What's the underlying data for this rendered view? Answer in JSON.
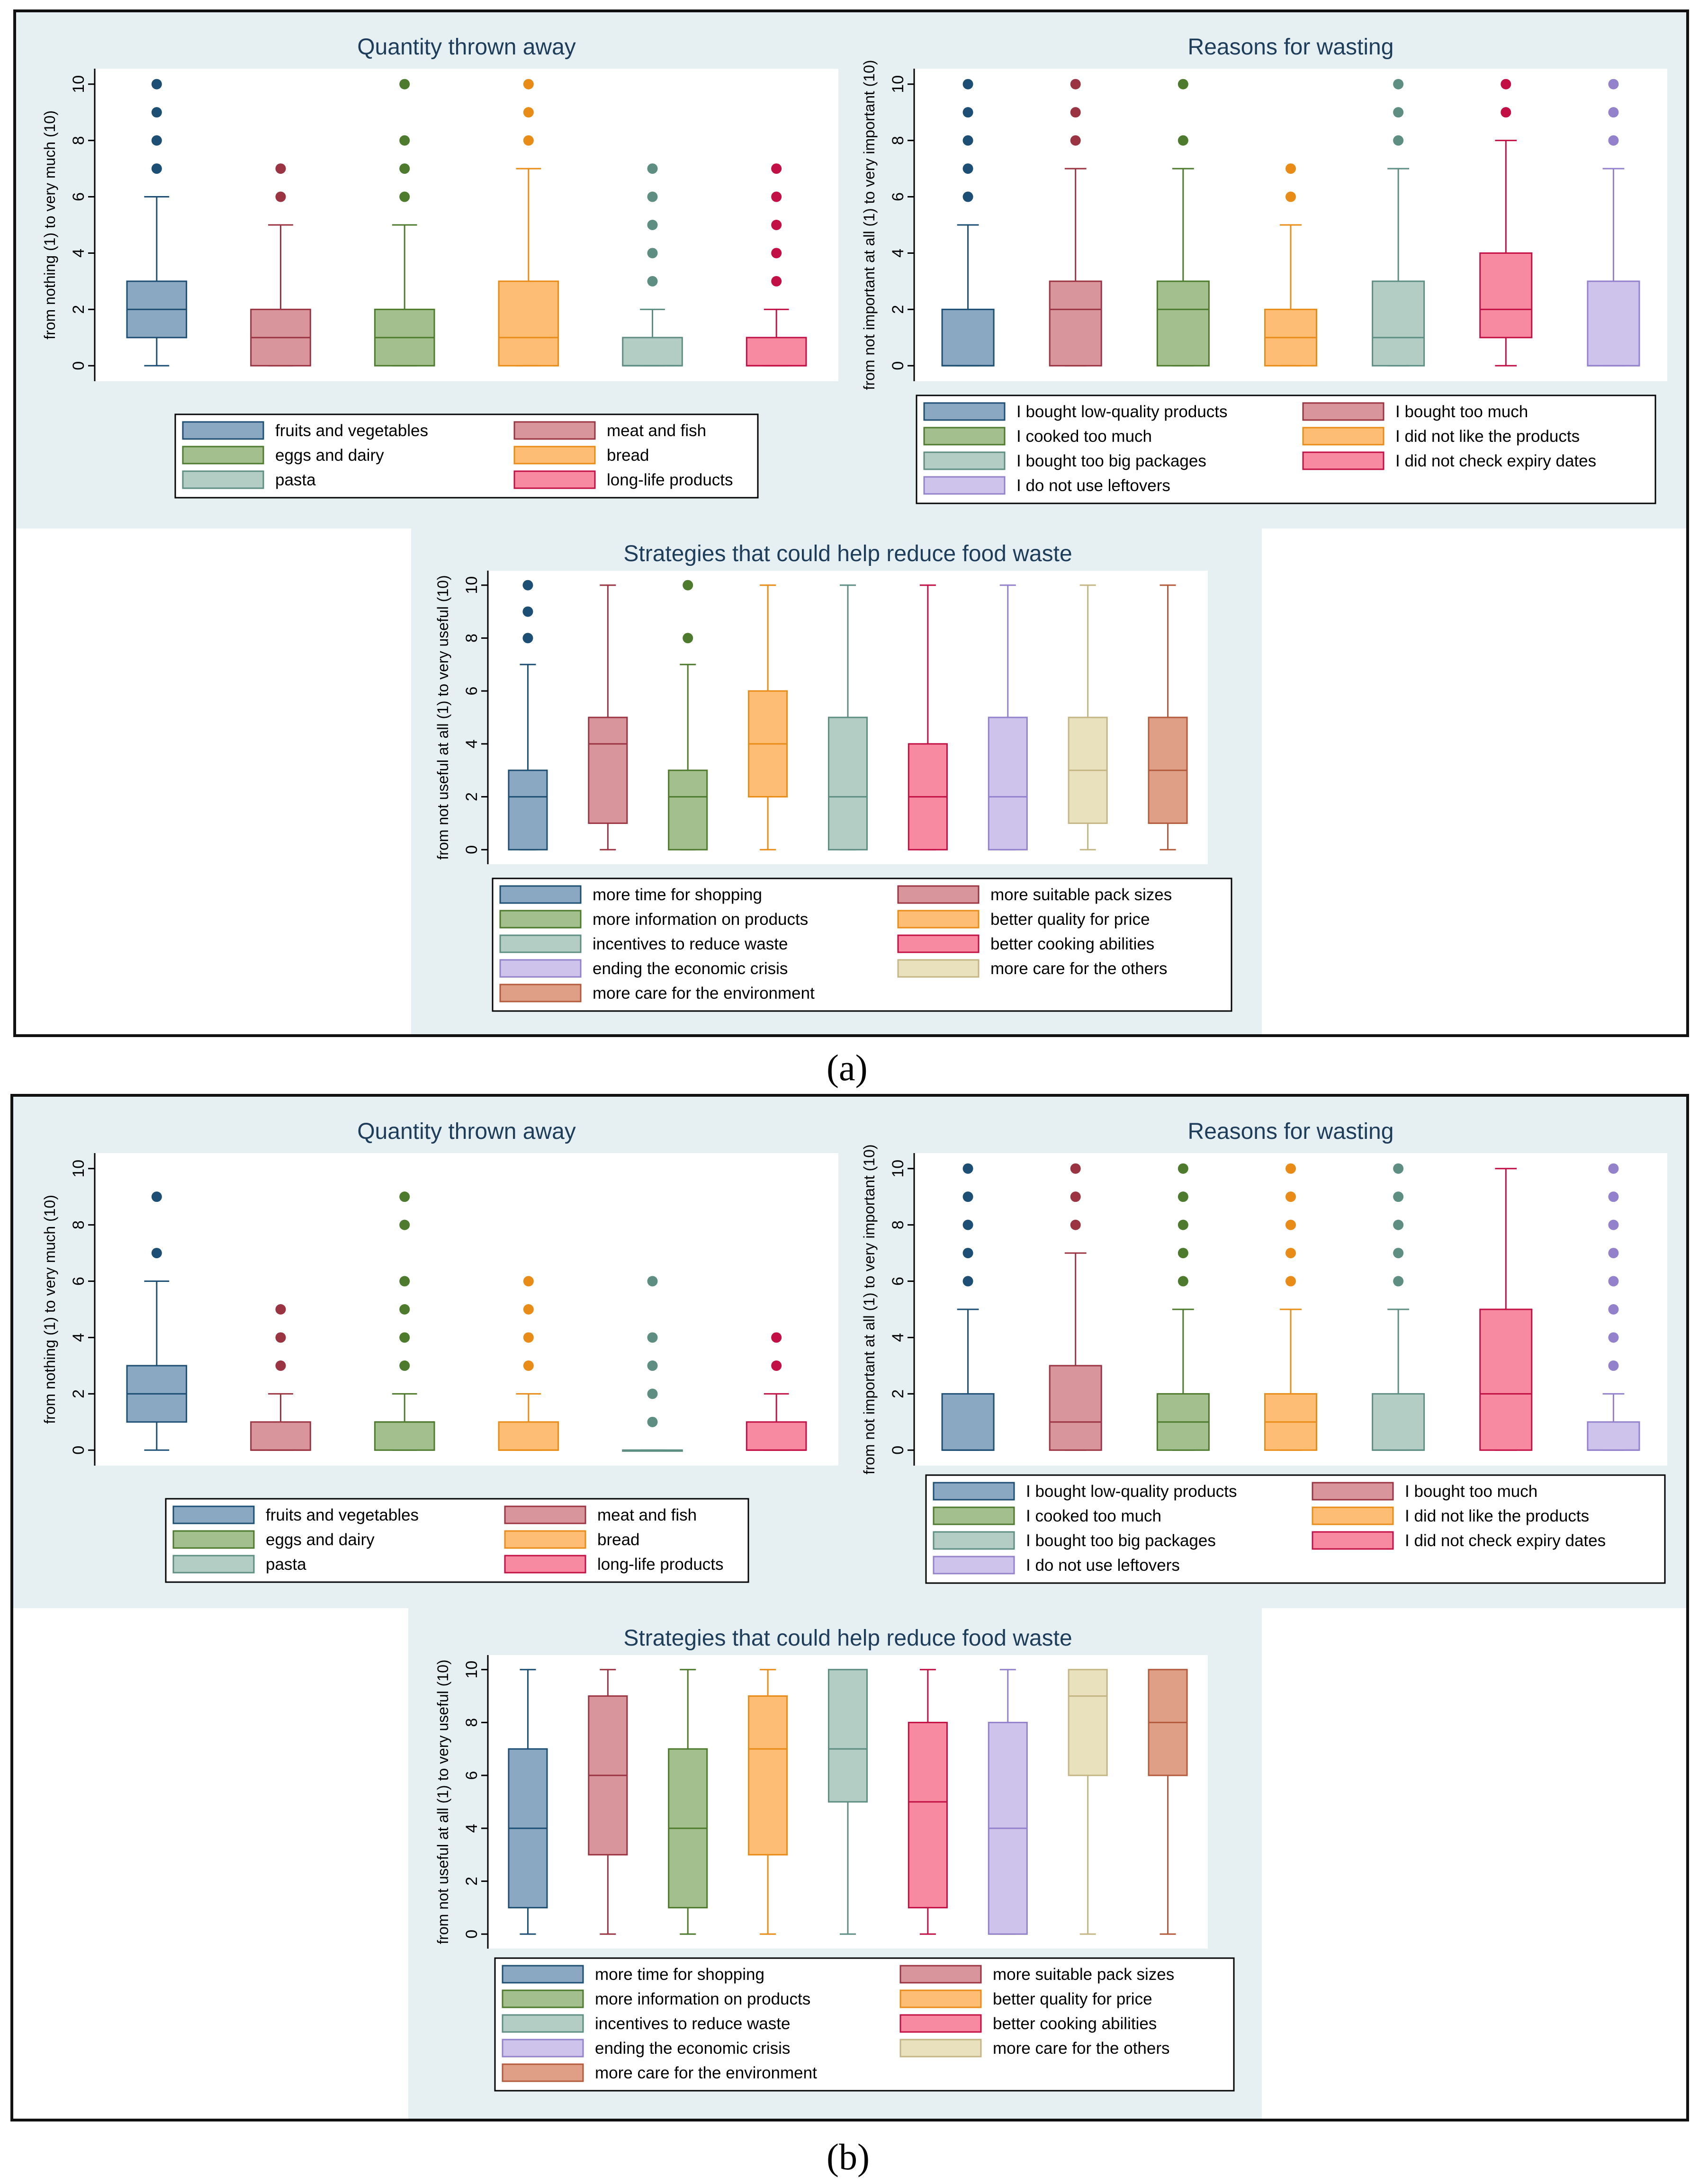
{
  "panel_labels": {
    "a": "(a)",
    "b": "(b)"
  },
  "legends": {
    "quantity": [
      "fruits and vegetables",
      "meat and fish",
      "eggs and dairy",
      "bread",
      "pasta",
      "long-life products"
    ],
    "reasons": [
      "I bought low-quality products",
      "I bought too much",
      "I cooked too much",
      "I did not like the products",
      "I bought too big packages",
      "I did not check expiry dates",
      "I do not use leftovers"
    ],
    "strategies": [
      "more time for shopping",
      "more suitable pack sizes",
      "more information on products",
      "better quality for price",
      "incentives to reduce waste",
      "better cooking abilities",
      "ending the economic crisis",
      "more care for the others",
      "more care for the environment"
    ]
  },
  "palette": [
    {
      "fill": "#8aa8c2",
      "stroke": "#1d4e74"
    },
    {
      "fill": "#d9959c",
      "stroke": "#9a3442"
    },
    {
      "fill": "#a3bf8e",
      "stroke": "#4d7a2d"
    },
    {
      "fill": "#fdbd75",
      "stroke": "#e88c17"
    },
    {
      "fill": "#b3cdc5",
      "stroke": "#5d8e81"
    },
    {
      "fill": "#f78aa1",
      "stroke": "#c21045"
    },
    {
      "fill": "#cec3ea",
      "stroke": "#9381cc"
    },
    {
      "fill": "#e9e1bd",
      "stroke": "#c4b584"
    },
    {
      "fill": "#de9f86",
      "stroke": "#b35a3c"
    }
  ],
  "chart_data": [
    {
      "type": "box",
      "panel": "a",
      "key": "a-quantity",
      "title": "Quantity thrown away",
      "ylabel": "from nothing (1) to very much (10)",
      "ylim": [
        0,
        10
      ],
      "yticks": [
        0,
        2,
        4,
        6,
        8,
        10
      ],
      "legend": "quantity",
      "boxes": [
        {
          "q1": 1,
          "med": 2,
          "q3": 3,
          "lo": 0,
          "hi": 6,
          "out": [
            7,
            8,
            9,
            10
          ]
        },
        {
          "q1": 0,
          "med": 1,
          "q3": 2,
          "lo": 0,
          "hi": 5,
          "out": [
            6,
            7
          ]
        },
        {
          "q1": 0,
          "med": 1,
          "q3": 2,
          "lo": 0,
          "hi": 5,
          "out": [
            6,
            7,
            8,
            10
          ]
        },
        {
          "q1": 0,
          "med": 1,
          "q3": 3,
          "lo": 0,
          "hi": 7,
          "out": [
            8,
            9,
            10
          ]
        },
        {
          "q1": 0,
          "med": 0,
          "q3": 1,
          "lo": 0,
          "hi": 2,
          "out": [
            3,
            4,
            5,
            6,
            7
          ]
        },
        {
          "q1": 0,
          "med": 0,
          "q3": 1,
          "lo": 0,
          "hi": 2,
          "out": [
            3,
            4,
            5,
            6,
            7
          ]
        }
      ]
    },
    {
      "type": "box",
      "panel": "a",
      "key": "a-reasons",
      "title": "Reasons for wasting",
      "ylabel": "from not important at all (1) to very important (10)",
      "ylim": [
        0,
        10
      ],
      "yticks": [
        0,
        2,
        4,
        6,
        8,
        10
      ],
      "legend": "reasons",
      "boxes": [
        {
          "q1": 0,
          "med": 0,
          "q3": 2,
          "lo": 0,
          "hi": 5,
          "out": [
            6,
            7,
            8,
            9,
            10
          ]
        },
        {
          "q1": 0,
          "med": 2,
          "q3": 3,
          "lo": 0,
          "hi": 7,
          "out": [
            8,
            9,
            10
          ]
        },
        {
          "q1": 0,
          "med": 2,
          "q3": 3,
          "lo": 0,
          "hi": 7,
          "out": [
            8,
            10
          ]
        },
        {
          "q1": 0,
          "med": 1,
          "q3": 2,
          "lo": 0,
          "hi": 5,
          "out": [
            6,
            7
          ]
        },
        {
          "q1": 0,
          "med": 1,
          "q3": 3,
          "lo": 0,
          "hi": 7,
          "out": [
            8,
            9,
            10
          ]
        },
        {
          "q1": 1,
          "med": 2,
          "q3": 4,
          "lo": 0,
          "hi": 8,
          "out": [
            9,
            10
          ]
        },
        {
          "q1": 0,
          "med": 0,
          "q3": 3,
          "lo": 0,
          "hi": 7,
          "out": [
            8,
            9,
            10
          ]
        }
      ]
    },
    {
      "type": "box",
      "panel": "a",
      "key": "a-strategies",
      "title": "Strategies that could help reduce food waste",
      "ylabel": "from not useful at all (1) to very useful (10)",
      "ylim": [
        0,
        10
      ],
      "yticks": [
        0,
        2,
        4,
        6,
        8,
        10
      ],
      "legend": "strategies",
      "boxes": [
        {
          "q1": 0,
          "med": 2,
          "q3": 3,
          "lo": 0,
          "hi": 7,
          "out": [
            8,
            9,
            10
          ]
        },
        {
          "q1": 1,
          "med": 4,
          "q3": 5,
          "lo": 0,
          "hi": 10,
          "out": []
        },
        {
          "q1": 0,
          "med": 2,
          "q3": 3,
          "lo": 0,
          "hi": 7,
          "out": [
            8,
            10
          ]
        },
        {
          "q1": 2,
          "med": 4,
          "q3": 6,
          "lo": 0,
          "hi": 10,
          "out": []
        },
        {
          "q1": 0,
          "med": 2,
          "q3": 5,
          "lo": 0,
          "hi": 10,
          "out": []
        },
        {
          "q1": 0,
          "med": 2,
          "q3": 4,
          "lo": 0,
          "hi": 10,
          "out": []
        },
        {
          "q1": 0,
          "med": 2,
          "q3": 5,
          "lo": 0,
          "hi": 10,
          "out": []
        },
        {
          "q1": 1,
          "med": 3,
          "q3": 5,
          "lo": 0,
          "hi": 10,
          "out": []
        },
        {
          "q1": 1,
          "med": 3,
          "q3": 5,
          "lo": 0,
          "hi": 10,
          "out": []
        }
      ]
    },
    {
      "type": "box",
      "panel": "b",
      "key": "b-quantity",
      "title": "Quantity thrown away",
      "ylabel": "from nothing (1) to very much (10)",
      "ylim": [
        0,
        10
      ],
      "yticks": [
        0,
        2,
        4,
        6,
        8,
        10
      ],
      "legend": "quantity",
      "boxes": [
        {
          "q1": 1,
          "med": 2,
          "q3": 3,
          "lo": 0,
          "hi": 6,
          "out": [
            7,
            9
          ]
        },
        {
          "q1": 0,
          "med": 0,
          "q3": 1,
          "lo": 0,
          "hi": 2,
          "out": [
            3,
            4,
            5
          ]
        },
        {
          "q1": 0,
          "med": 1,
          "q3": 1,
          "lo": 0,
          "hi": 2,
          "out": [
            3,
            4,
            5,
            6,
            8,
            9
          ]
        },
        {
          "q1": 0,
          "med": 0,
          "q3": 1,
          "lo": 0,
          "hi": 2,
          "out": [
            3,
            4,
            5,
            6
          ]
        },
        {
          "q1": 0,
          "med": 0,
          "q3": 0,
          "lo": 0,
          "hi": 0,
          "out": [
            1,
            2,
            3,
            4,
            6
          ]
        },
        {
          "q1": 0,
          "med": 0,
          "q3": 1,
          "lo": 0,
          "hi": 2,
          "out": [
            3,
            4
          ]
        }
      ]
    },
    {
      "type": "box",
      "panel": "b",
      "key": "b-reasons",
      "title": "Reasons for wasting",
      "ylabel": "from not important at all (1) to very important (10)",
      "ylim": [
        0,
        10
      ],
      "yticks": [
        0,
        2,
        4,
        6,
        8,
        10
      ],
      "legend": "reasons",
      "boxes": [
        {
          "q1": 0,
          "med": 0,
          "q3": 2,
          "lo": 0,
          "hi": 5,
          "out": [
            6,
            7,
            8,
            9,
            10
          ]
        },
        {
          "q1": 0,
          "med": 1,
          "q3": 3,
          "lo": 0,
          "hi": 7,
          "out": [
            8,
            9,
            10
          ]
        },
        {
          "q1": 0,
          "med": 1,
          "q3": 2,
          "lo": 0,
          "hi": 5,
          "out": [
            6,
            7,
            8,
            9,
            10
          ]
        },
        {
          "q1": 0,
          "med": 1,
          "q3": 2,
          "lo": 0,
          "hi": 5,
          "out": [
            6,
            7,
            8,
            9,
            10
          ]
        },
        {
          "q1": 0,
          "med": 0,
          "q3": 2,
          "lo": 0,
          "hi": 5,
          "out": [
            6,
            7,
            8,
            9,
            10
          ]
        },
        {
          "q1": 0,
          "med": 2,
          "q3": 5,
          "lo": 0,
          "hi": 10,
          "out": []
        },
        {
          "q1": 0,
          "med": 0,
          "q3": 1,
          "lo": 0,
          "hi": 2,
          "out": [
            3,
            4,
            5,
            6,
            7,
            8,
            9,
            10
          ]
        }
      ]
    },
    {
      "type": "box",
      "panel": "b",
      "key": "b-strategies",
      "title": "Strategies that could help reduce food waste",
      "ylabel": "from not useful at all (1) to very useful (10)",
      "ylim": [
        0,
        10
      ],
      "yticks": [
        0,
        2,
        4,
        6,
        8,
        10
      ],
      "legend": "strategies",
      "boxes": [
        {
          "q1": 1,
          "med": 4,
          "q3": 7,
          "lo": 0,
          "hi": 10,
          "out": []
        },
        {
          "q1": 3,
          "med": 6,
          "q3": 9,
          "lo": 0,
          "hi": 10,
          "out": []
        },
        {
          "q1": 1,
          "med": 4,
          "q3": 7,
          "lo": 0,
          "hi": 10,
          "out": []
        },
        {
          "q1": 3,
          "med": 7,
          "q3": 9,
          "lo": 0,
          "hi": 10,
          "out": []
        },
        {
          "q1": 5,
          "med": 7,
          "q3": 10,
          "lo": 0,
          "hi": 10,
          "out": []
        },
        {
          "q1": 1,
          "med": 5,
          "q3": 8,
          "lo": 0,
          "hi": 10,
          "out": []
        },
        {
          "q1": 0,
          "med": 4,
          "q3": 8,
          "lo": 0,
          "hi": 10,
          "out": []
        },
        {
          "q1": 6,
          "med": 9,
          "q3": 10,
          "lo": 0,
          "hi": 10,
          "out": []
        },
        {
          "q1": 6,
          "med": 8,
          "q3": 10,
          "lo": 0,
          "hi": 10,
          "out": []
        }
      ]
    }
  ]
}
